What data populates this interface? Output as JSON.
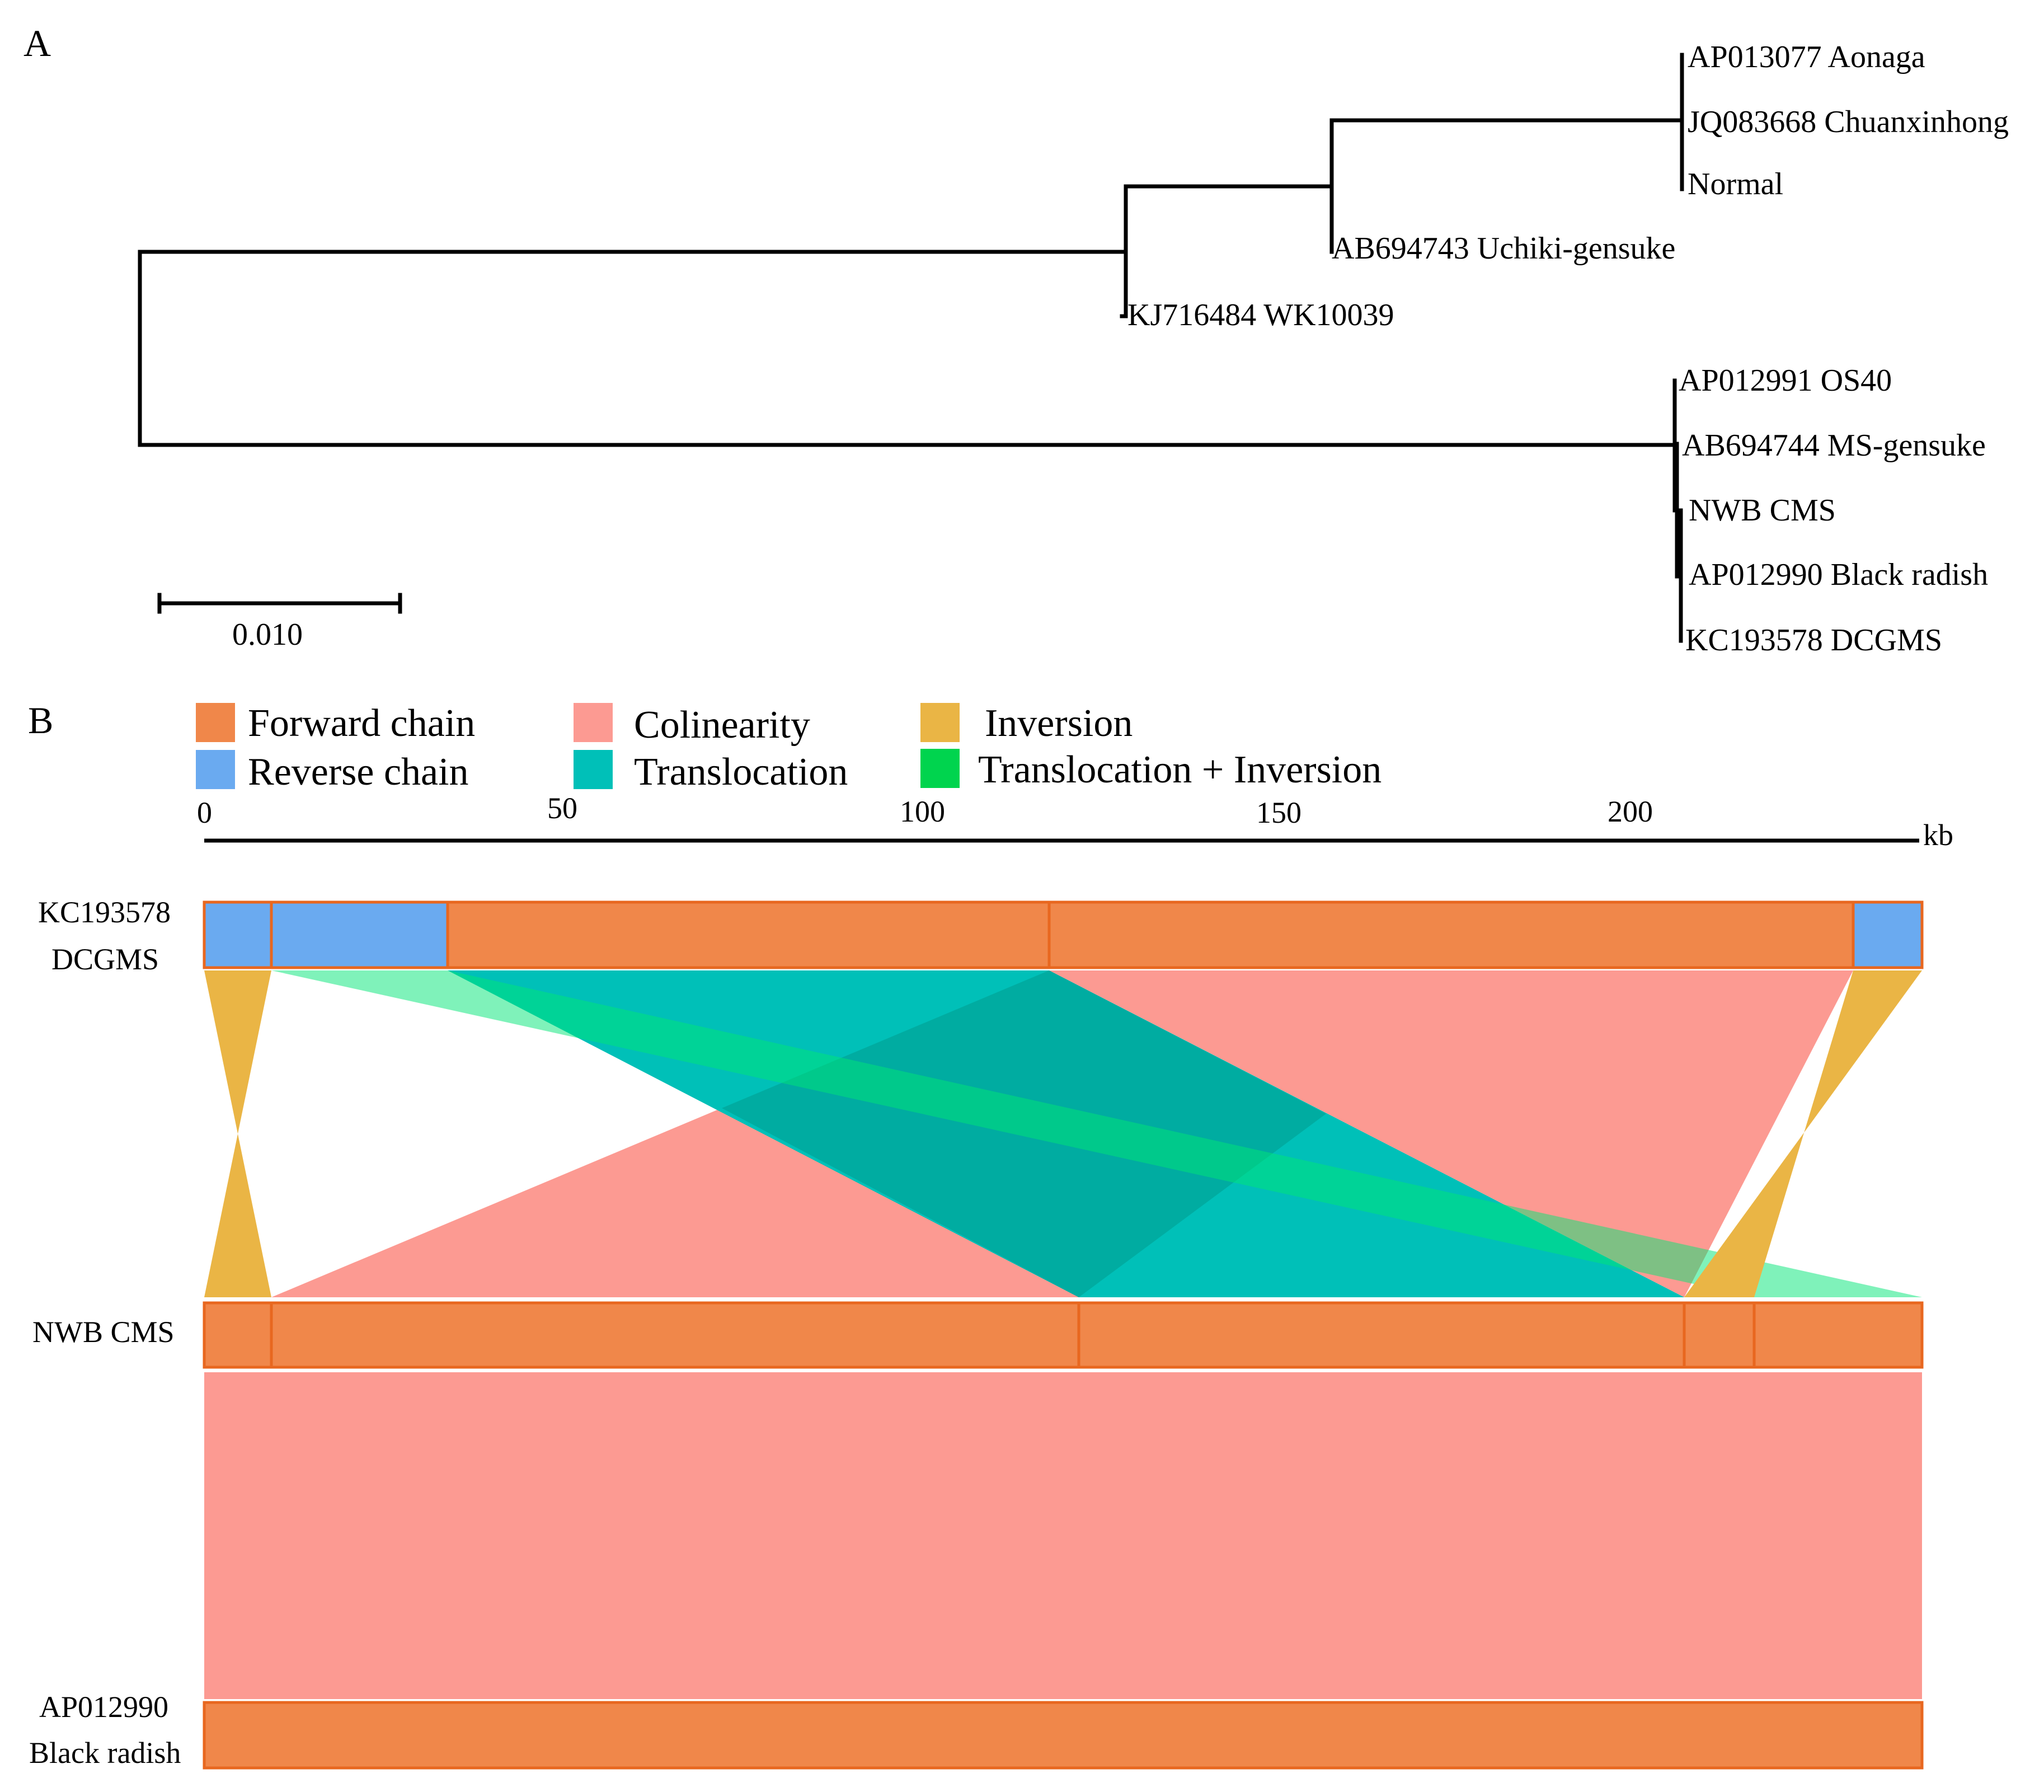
{
  "panels": {
    "a": "A",
    "b": "B"
  },
  "tree": {
    "scale_label": "0.010",
    "leaves": [
      "AP013077 Aonaga",
      "JQ083668 Chuanxinhong",
      "Normal",
      "AB694743 Uchiki-gensuke",
      "KJ716484 WK10039",
      "AP012991 OS40",
      "AB694744 MS-gensuke",
      "NWB CMS",
      "AP012990 Black radish",
      "KC193578 DCGMS"
    ]
  },
  "legend": [
    {
      "label": "Forward chain",
      "color": "#f0874a"
    },
    {
      "label": "Reverse chain",
      "color": "#6aaaf0"
    },
    {
      "label": "Colinearity",
      "color": "#fc9a92"
    },
    {
      "label": "Translocation",
      "color": "#00c0b8"
    },
    {
      "label": "Inversion",
      "color": "#eab545"
    },
    {
      "label": "Translocation + Inversion",
      "color": "#00d44e"
    }
  ],
  "axis": {
    "unit": "kb",
    "min": 0,
    "max": 240,
    "ticks": [
      "0",
      "50",
      "100",
      "150",
      "200"
    ]
  },
  "sequences": [
    {
      "label_line1": "KC193578",
      "label_line2": "DCGMS"
    },
    {
      "label_line1": "NWB CMS",
      "label_line2": ""
    },
    {
      "label_line1": "AP012990",
      "label_line2": "Black radish"
    }
  ]
}
